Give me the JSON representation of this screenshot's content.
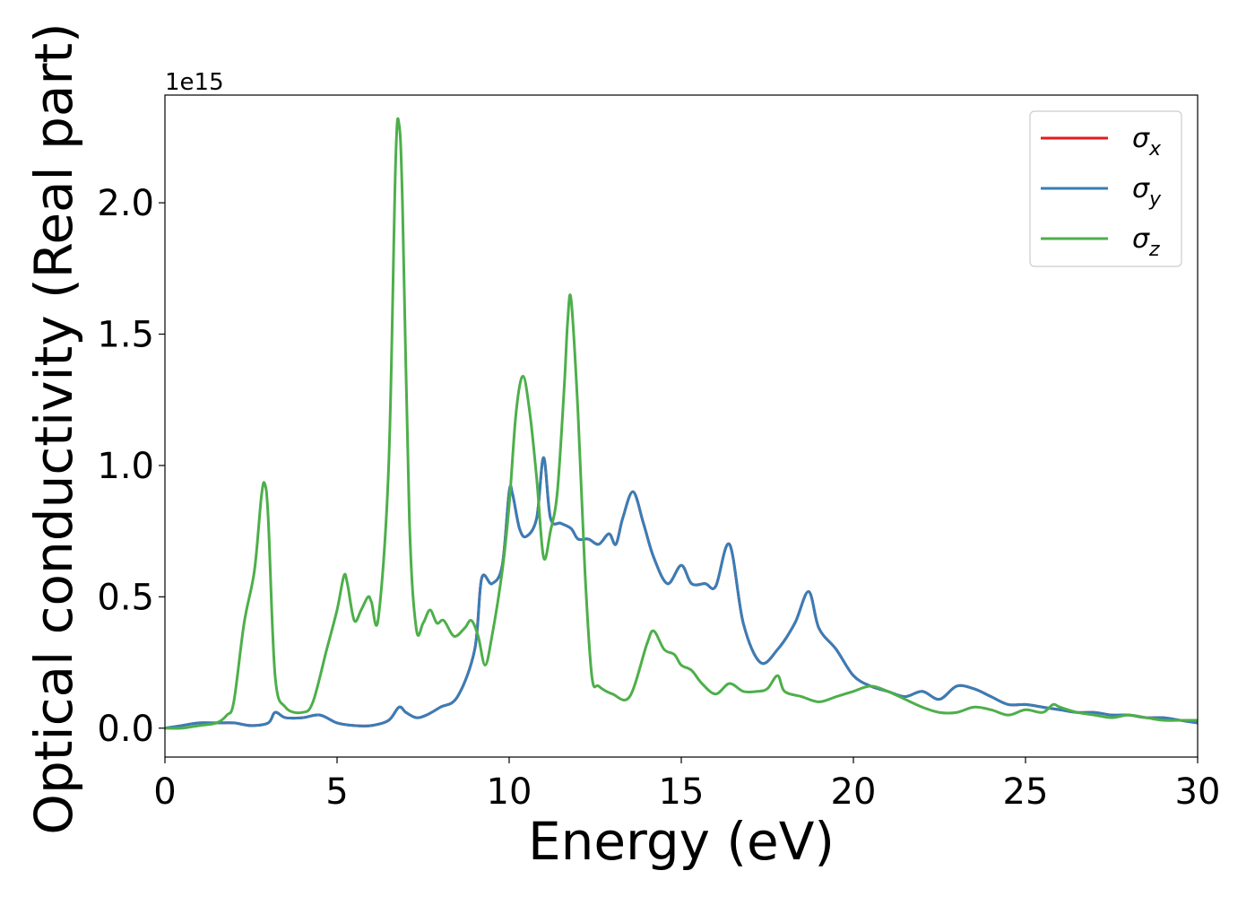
{
  "chart_data": {
    "type": "line",
    "xlabel": "Energy (eV)",
    "ylabel": "Optical conductivity (Real part)",
    "y_offset_label": "1e15",
    "xlim": [
      0,
      30
    ],
    "ylim": [
      -0.11,
      2.41
    ],
    "y_scale_factor": 1000000000000000.0,
    "x_ticks": [
      0,
      5,
      10,
      15,
      20,
      25,
      30
    ],
    "x_tick_labels": [
      "0",
      "5",
      "10",
      "15",
      "20",
      "25",
      "30"
    ],
    "y_ticks": [
      0.0,
      0.5,
      1.0,
      1.5,
      2.0
    ],
    "y_tick_labels": [
      "0.0",
      "0.5",
      "1.0",
      "1.5",
      "2.0"
    ],
    "grid": false,
    "legend_position": "top-right",
    "series": [
      {
        "name": "σx",
        "color": "#e41a1c",
        "x": [
          0,
          0.5,
          1,
          1.5,
          2,
          2.5,
          3,
          3.2,
          3.5,
          4,
          4.5,
          5,
          5.5,
          6,
          6.5,
          6.8,
          7,
          7.3,
          7.6,
          8,
          8.5,
          9,
          9.2,
          9.5,
          9.8,
          10,
          10.1,
          10.3,
          10.5,
          10.8,
          11,
          11.2,
          11.5,
          11.8,
          12,
          12.3,
          12.6,
          12.9,
          13.1,
          13.3,
          13.6,
          13.9,
          14.2,
          14.6,
          15,
          15.3,
          15.7,
          16,
          16.4,
          16.8,
          17.3,
          17.8,
          18.3,
          18.7,
          19,
          19.5,
          20,
          20.5,
          21,
          21.5,
          22,
          22.5,
          23,
          23.5,
          24,
          24.5,
          25,
          25.5,
          26,
          26.5,
          27,
          27.5,
          28,
          28.5,
          29,
          29.5,
          30
        ],
        "values": [
          0.0,
          0.01,
          0.02,
          0.02,
          0.02,
          0.01,
          0.02,
          0.06,
          0.04,
          0.04,
          0.05,
          0.02,
          0.01,
          0.01,
          0.03,
          0.08,
          0.06,
          0.04,
          0.05,
          0.08,
          0.12,
          0.3,
          0.57,
          0.55,
          0.62,
          0.9,
          0.89,
          0.76,
          0.73,
          0.8,
          1.03,
          0.8,
          0.78,
          0.76,
          0.72,
          0.72,
          0.7,
          0.74,
          0.7,
          0.8,
          0.9,
          0.78,
          0.65,
          0.55,
          0.62,
          0.55,
          0.55,
          0.54,
          0.7,
          0.4,
          0.25,
          0.3,
          0.4,
          0.52,
          0.38,
          0.3,
          0.2,
          0.16,
          0.14,
          0.12,
          0.14,
          0.11,
          0.16,
          0.15,
          0.12,
          0.09,
          0.09,
          0.08,
          0.07,
          0.06,
          0.06,
          0.05,
          0.05,
          0.04,
          0.04,
          0.03,
          0.02
        ]
      },
      {
        "name": "σy",
        "color": "#377eb8",
        "x": [
          0,
          0.5,
          1,
          1.5,
          2,
          2.5,
          3,
          3.2,
          3.5,
          4,
          4.5,
          5,
          5.5,
          6,
          6.5,
          6.8,
          7,
          7.3,
          7.6,
          8,
          8.5,
          9,
          9.2,
          9.5,
          9.8,
          10,
          10.1,
          10.3,
          10.5,
          10.8,
          11,
          11.2,
          11.5,
          11.8,
          12,
          12.3,
          12.6,
          12.9,
          13.1,
          13.3,
          13.6,
          13.9,
          14.2,
          14.6,
          15,
          15.3,
          15.7,
          16,
          16.4,
          16.8,
          17.3,
          17.8,
          18.3,
          18.7,
          19,
          19.5,
          20,
          20.5,
          21,
          21.5,
          22,
          22.5,
          23,
          23.5,
          24,
          24.5,
          25,
          25.5,
          26,
          26.5,
          27,
          27.5,
          28,
          28.5,
          29,
          29.5,
          30
        ],
        "values": [
          0.0,
          0.01,
          0.02,
          0.02,
          0.02,
          0.01,
          0.02,
          0.06,
          0.04,
          0.04,
          0.05,
          0.02,
          0.01,
          0.01,
          0.03,
          0.08,
          0.06,
          0.04,
          0.05,
          0.08,
          0.12,
          0.3,
          0.57,
          0.55,
          0.62,
          0.9,
          0.89,
          0.76,
          0.73,
          0.8,
          1.03,
          0.8,
          0.78,
          0.76,
          0.72,
          0.72,
          0.7,
          0.74,
          0.7,
          0.8,
          0.9,
          0.78,
          0.65,
          0.55,
          0.62,
          0.55,
          0.55,
          0.54,
          0.7,
          0.4,
          0.25,
          0.3,
          0.4,
          0.52,
          0.38,
          0.3,
          0.2,
          0.16,
          0.14,
          0.12,
          0.14,
          0.11,
          0.16,
          0.15,
          0.12,
          0.09,
          0.09,
          0.08,
          0.07,
          0.06,
          0.06,
          0.05,
          0.05,
          0.04,
          0.04,
          0.03,
          0.02
        ]
      },
      {
        "name": "σz",
        "color": "#4daf4a",
        "x": [
          0,
          0.5,
          1,
          1.5,
          1.8,
          2,
          2.3,
          2.6,
          2.8,
          2.9,
          3.0,
          3.2,
          3.5,
          4,
          4.3,
          4.7,
          5,
          5.2,
          5.3,
          5.5,
          5.7,
          5.9,
          6,
          6.2,
          6.5,
          6.7,
          6.8,
          6.9,
          7.1,
          7.3,
          7.5,
          7.7,
          7.9,
          8.1,
          8.4,
          8.7,
          8.9,
          9.1,
          9.3,
          9.5,
          9.8,
          10,
          10.2,
          10.4,
          10.6,
          10.8,
          11,
          11.2,
          11.4,
          11.6,
          11.7,
          11.8,
          12,
          12.2,
          12.4,
          12.6,
          13,
          13.5,
          14,
          14.2,
          14.5,
          14.8,
          15,
          15.3,
          15.6,
          16,
          16.4,
          16.8,
          17.2,
          17.5,
          17.8,
          18,
          18.5,
          19,
          19.5,
          20,
          20.5,
          21,
          21.5,
          22,
          22.5,
          23,
          23.5,
          24,
          24.5,
          25,
          25.5,
          25.8,
          26,
          26.5,
          27,
          27.5,
          28,
          28.5,
          29,
          29.5,
          30
        ],
        "values": [
          0.0,
          0.0,
          0.01,
          0.02,
          0.05,
          0.1,
          0.4,
          0.6,
          0.88,
          0.93,
          0.8,
          0.2,
          0.08,
          0.06,
          0.1,
          0.3,
          0.45,
          0.58,
          0.55,
          0.41,
          0.45,
          0.5,
          0.48,
          0.42,
          1.0,
          2.15,
          2.3,
          2.0,
          0.8,
          0.38,
          0.4,
          0.45,
          0.4,
          0.41,
          0.35,
          0.38,
          0.41,
          0.35,
          0.24,
          0.35,
          0.6,
          0.85,
          1.2,
          1.34,
          1.2,
          0.95,
          0.65,
          0.75,
          0.9,
          1.3,
          1.55,
          1.63,
          1.2,
          0.6,
          0.2,
          0.16,
          0.13,
          0.12,
          0.32,
          0.37,
          0.3,
          0.28,
          0.24,
          0.22,
          0.17,
          0.13,
          0.17,
          0.14,
          0.14,
          0.15,
          0.2,
          0.14,
          0.12,
          0.1,
          0.12,
          0.14,
          0.16,
          0.14,
          0.11,
          0.08,
          0.06,
          0.06,
          0.08,
          0.07,
          0.05,
          0.07,
          0.06,
          0.09,
          0.08,
          0.06,
          0.05,
          0.04,
          0.05,
          0.04,
          0.03,
          0.03,
          0.03
        ]
      }
    ]
  }
}
